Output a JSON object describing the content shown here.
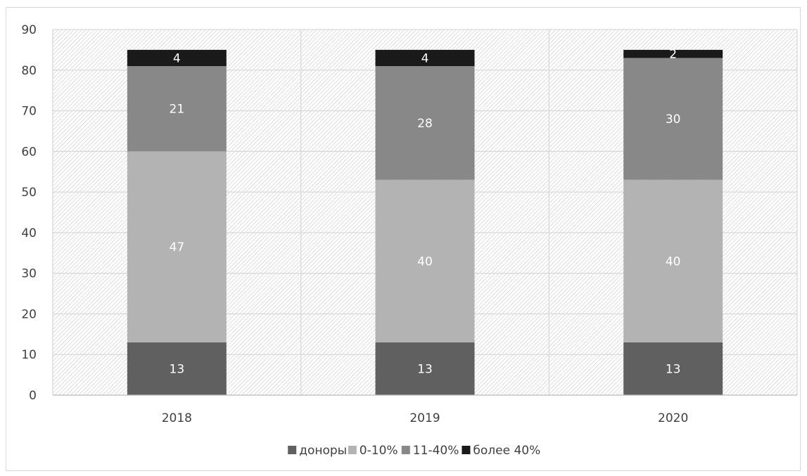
{
  "chart_data": {
    "type": "bar",
    "stacked": true,
    "categories": [
      "2018",
      "2019",
      "2020"
    ],
    "series": [
      {
        "name": "доноры",
        "values": [
          13,
          13,
          13
        ],
        "color": "#606060",
        "label_color": "#ffffff"
      },
      {
        "name": "0-10%",
        "values": [
          47,
          40,
          40
        ],
        "color": "#b3b3b3",
        "label_color": "#ffffff"
      },
      {
        "name": "11-40%",
        "values": [
          21,
          28,
          30
        ],
        "color": "#888888",
        "label_color": "#ffffff"
      },
      {
        "name": "более 40%",
        "values": [
          4,
          4,
          2
        ],
        "color": "#1a1a1a",
        "label_color": "#ffffff"
      }
    ],
    "ylim": [
      0,
      90
    ],
    "yticks": [
      0,
      10,
      20,
      30,
      40,
      50,
      60,
      70,
      80,
      90
    ],
    "grid": true,
    "legend_position": "bottom",
    "title": "",
    "xlabel": "",
    "ylabel": ""
  }
}
